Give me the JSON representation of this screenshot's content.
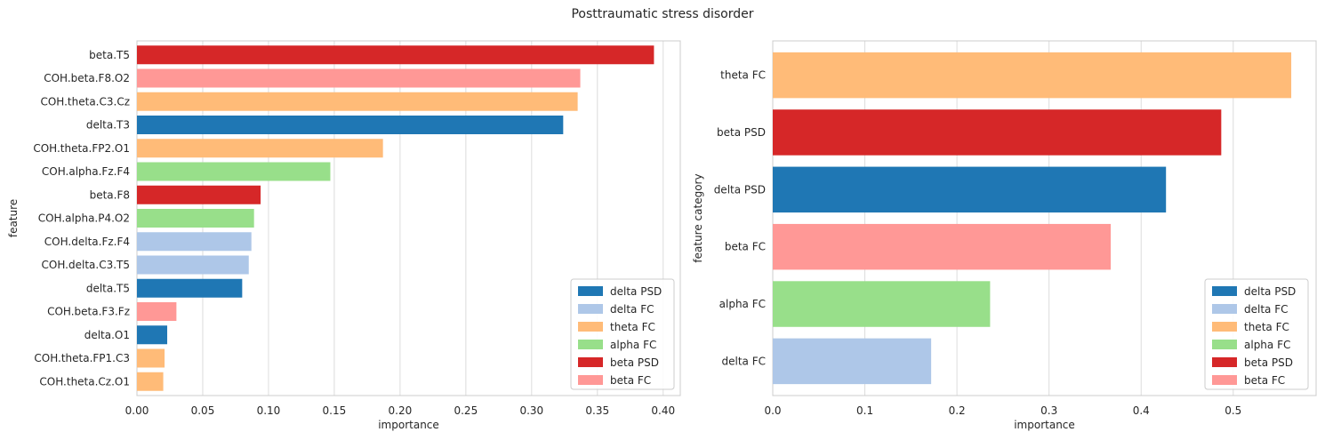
{
  "suptitle": "Posttraumatic stress disorder",
  "colors": {
    "delta PSD": "#1f77b4",
    "delta FC": "#aec7e8",
    "theta FC": "#ffbb78",
    "alpha FC": "#98df8a",
    "beta PSD": "#d62728",
    "beta FC": "#ff9896"
  },
  "legend": [
    "delta PSD",
    "delta FC",
    "theta FC",
    "alpha FC",
    "beta PSD",
    "beta FC"
  ],
  "chart_data": [
    {
      "type": "bar",
      "orientation": "horizontal",
      "xlabel": "importance",
      "ylabel": "feature",
      "xlim": [
        0,
        0.413
      ],
      "xticks": [
        0.0,
        0.05,
        0.1,
        0.15,
        0.2,
        0.25,
        0.3,
        0.35,
        0.4
      ],
      "xtick_labels": [
        "0.00",
        "0.05",
        "0.10",
        "0.15",
        "0.20",
        "0.25",
        "0.30",
        "0.35",
        "0.40"
      ],
      "grid": true,
      "legend_position": "lower-right",
      "categories": [
        "beta.T5",
        "COH.beta.F8.O2",
        "COH.theta.C3.Cz",
        "delta.T3",
        "COH.theta.FP2.O1",
        "COH.alpha.Fz.F4",
        "beta.F8",
        "COH.alpha.P4.O2",
        "COH.delta.Fz.F4",
        "COH.delta.C3.T5",
        "delta.T5",
        "COH.beta.F3.Fz",
        "delta.O1",
        "COH.theta.FP1.C3",
        "COH.theta.Cz.O1"
      ],
      "values": [
        0.393,
        0.337,
        0.335,
        0.324,
        0.187,
        0.147,
        0.094,
        0.089,
        0.087,
        0.085,
        0.08,
        0.03,
        0.023,
        0.021,
        0.02
      ],
      "groups": [
        "beta PSD",
        "beta FC",
        "theta FC",
        "delta PSD",
        "theta FC",
        "alpha FC",
        "beta PSD",
        "alpha FC",
        "delta FC",
        "delta FC",
        "delta PSD",
        "beta FC",
        "delta PSD",
        "theta FC",
        "theta FC"
      ]
    },
    {
      "type": "bar",
      "orientation": "horizontal",
      "xlabel": "importance",
      "ylabel": "feature category",
      "xlim": [
        0,
        0.59
      ],
      "xticks": [
        0.0,
        0.1,
        0.2,
        0.3,
        0.4,
        0.5
      ],
      "xtick_labels": [
        "0.0",
        "0.1",
        "0.2",
        "0.3",
        "0.4",
        "0.5"
      ],
      "grid": true,
      "legend_position": "lower-right",
      "categories": [
        "theta FC",
        "beta PSD",
        "delta PSD",
        "beta FC",
        "alpha FC",
        "delta FC"
      ],
      "values": [
        0.563,
        0.487,
        0.427,
        0.367,
        0.236,
        0.172
      ],
      "groups": [
        "theta FC",
        "beta PSD",
        "delta PSD",
        "beta FC",
        "alpha FC",
        "delta FC"
      ]
    }
  ]
}
